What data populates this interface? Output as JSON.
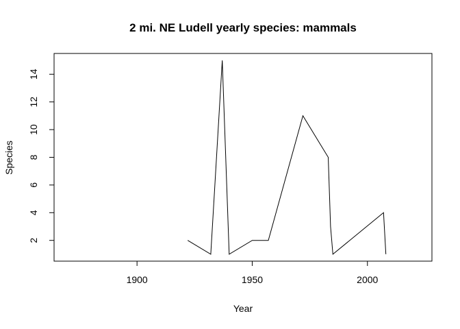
{
  "chart_data": {
    "type": "line",
    "title": "2 mi. NE Ludell yearly species: mammals",
    "xlabel": "Year",
    "ylabel": "Species",
    "xlim": [
      1864,
      2028
    ],
    "ylim": [
      0.5,
      15.5
    ],
    "x_ticks": [
      1900,
      1950,
      2000
    ],
    "y_ticks": [
      2,
      4,
      6,
      8,
      10,
      12,
      14
    ],
    "grid": false,
    "series": [
      {
        "name": "species",
        "x": [
          1922,
          1932,
          1937,
          1940,
          1950,
          1957,
          1972,
          1983,
          1984,
          1985,
          2007,
          2008
        ],
        "y": [
          2,
          1,
          15,
          1,
          2,
          2,
          11,
          8,
          3,
          1,
          4,
          1
        ],
        "color": "#000000"
      }
    ]
  }
}
